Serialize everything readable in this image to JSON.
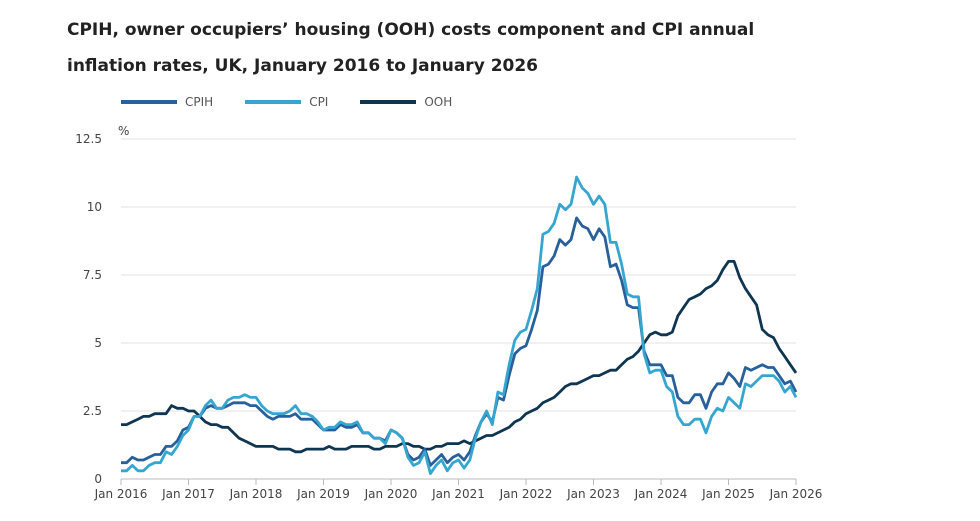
{
  "chart_data": {
    "type": "line",
    "title": "CPIH, owner occupiers’ housing (OOH) costs component and CPI annual inflation rates, UK, January 2016 to January 2026",
    "ylabel": "%",
    "ylim": [
      0,
      12.5
    ],
    "yticks": [
      "0",
      "2.5",
      "5",
      "7.5",
      "10",
      "12.5"
    ],
    "xticks": [
      "Jan 2016",
      "Jan 2017",
      "Jan 2018",
      "Jan 2019",
      "Jan 2020",
      "Jan 2021",
      "Jan 2022",
      "Jan 2023",
      "Jan 2024",
      "Jan 2025",
      "Jan 2026"
    ],
    "x_range": [
      "Jan 2016",
      "Jan 2026"
    ],
    "x_frequency": "monthly",
    "grid": "horizontal",
    "legend": "top-left",
    "series": [
      {
        "name": "CPIH",
        "color": "#27609a",
        "values": [
          0.6,
          0.6,
          0.8,
          0.7,
          0.7,
          0.8,
          0.9,
          0.9,
          1.2,
          1.2,
          1.4,
          1.8,
          1.9,
          2.3,
          2.3,
          2.6,
          2.7,
          2.6,
          2.6,
          2.7,
          2.8,
          2.8,
          2.8,
          2.7,
          2.7,
          2.5,
          2.3,
          2.2,
          2.3,
          2.3,
          2.3,
          2.4,
          2.2,
          2.2,
          2.2,
          2.0,
          1.8,
          1.8,
          1.8,
          2.0,
          1.9,
          1.9,
          2.0,
          1.7,
          1.7,
          1.5,
          1.5,
          1.4,
          1.8,
          1.7,
          1.5,
          0.9,
          0.7,
          0.8,
          1.1,
          0.5,
          0.7,
          0.9,
          0.6,
          0.8,
          0.9,
          0.7,
          1.0,
          1.6,
          2.1,
          2.4,
          2.1,
          3.0,
          2.9,
          3.8,
          4.6,
          4.8,
          4.9,
          5.5,
          6.2,
          7.8,
          7.9,
          8.2,
          8.8,
          8.6,
          8.8,
          9.6,
          9.3,
          9.2,
          8.8,
          9.2,
          8.9,
          7.8,
          7.9,
          7.3,
          6.4,
          6.3,
          6.3,
          4.7,
          4.2,
          4.2,
          4.2,
          3.8,
          3.8,
          3.0,
          2.8,
          2.8,
          3.1,
          3.1,
          2.6,
          3.2,
          3.5,
          3.5,
          3.9,
          3.7,
          3.4,
          4.1,
          4.0,
          4.1,
          4.2,
          4.1,
          4.1,
          3.8,
          3.5,
          3.6,
          3.2
        ]
      },
      {
        "name": "CPI",
        "color": "#35a6d0",
        "values": [
          0.3,
          0.3,
          0.5,
          0.3,
          0.3,
          0.5,
          0.6,
          0.6,
          1.0,
          0.9,
          1.2,
          1.6,
          1.8,
          2.3,
          2.3,
          2.7,
          2.9,
          2.6,
          2.6,
          2.9,
          3.0,
          3.0,
          3.1,
          3.0,
          3.0,
          2.7,
          2.5,
          2.4,
          2.4,
          2.4,
          2.5,
          2.7,
          2.4,
          2.4,
          2.3,
          2.1,
          1.8,
          1.9,
          1.9,
          2.1,
          2.0,
          2.0,
          2.1,
          1.7,
          1.7,
          1.5,
          1.5,
          1.3,
          1.8,
          1.7,
          1.5,
          0.8,
          0.5,
          0.6,
          1.0,
          0.2,
          0.5,
          0.7,
          0.3,
          0.6,
          0.7,
          0.4,
          0.7,
          1.5,
          2.1,
          2.5,
          2.0,
          3.2,
          3.1,
          4.2,
          5.1,
          5.4,
          5.5,
          6.2,
          7.0,
          9.0,
          9.1,
          9.4,
          10.1,
          9.9,
          10.1,
          11.1,
          10.7,
          10.5,
          10.1,
          10.4,
          10.1,
          8.7,
          8.7,
          7.9,
          6.8,
          6.7,
          6.7,
          4.6,
          3.9,
          4.0,
          4.0,
          3.4,
          3.2,
          2.3,
          2.0,
          2.0,
          2.2,
          2.2,
          1.7,
          2.3,
          2.6,
          2.5,
          3.0,
          2.8,
          2.6,
          3.5,
          3.4,
          3.6,
          3.8,
          3.8,
          3.8,
          3.6,
          3.2,
          3.4,
          3.0
        ]
      },
      {
        "name": "OOH",
        "color": "#0f3651",
        "values": [
          2.0,
          2.0,
          2.1,
          2.2,
          2.3,
          2.3,
          2.4,
          2.4,
          2.4,
          2.7,
          2.6,
          2.6,
          2.5,
          2.5,
          2.3,
          2.1,
          2.0,
          2.0,
          1.9,
          1.9,
          1.7,
          1.5,
          1.4,
          1.3,
          1.2,
          1.2,
          1.2,
          1.2,
          1.1,
          1.1,
          1.1,
          1.0,
          1.0,
          1.1,
          1.1,
          1.1,
          1.1,
          1.2,
          1.1,
          1.1,
          1.1,
          1.2,
          1.2,
          1.2,
          1.2,
          1.1,
          1.1,
          1.2,
          1.2,
          1.2,
          1.3,
          1.3,
          1.2,
          1.2,
          1.1,
          1.1,
          1.2,
          1.2,
          1.3,
          1.3,
          1.3,
          1.4,
          1.3,
          1.4,
          1.5,
          1.6,
          1.6,
          1.7,
          1.8,
          1.9,
          2.1,
          2.2,
          2.4,
          2.5,
          2.6,
          2.8,
          2.9,
          3.0,
          3.2,
          3.4,
          3.5,
          3.5,
          3.6,
          3.7,
          3.8,
          3.8,
          3.9,
          4.0,
          4.0,
          4.2,
          4.4,
          4.5,
          4.7,
          5.0,
          5.3,
          5.4,
          5.3,
          5.3,
          5.4,
          6.0,
          6.3,
          6.6,
          6.7,
          6.8,
          7.0,
          7.1,
          7.3,
          7.7,
          8.0,
          8.0,
          7.4,
          7.0,
          6.7,
          6.4,
          5.5,
          5.3,
          5.2,
          4.8,
          4.5,
          4.2,
          3.9
        ]
      }
    ]
  }
}
